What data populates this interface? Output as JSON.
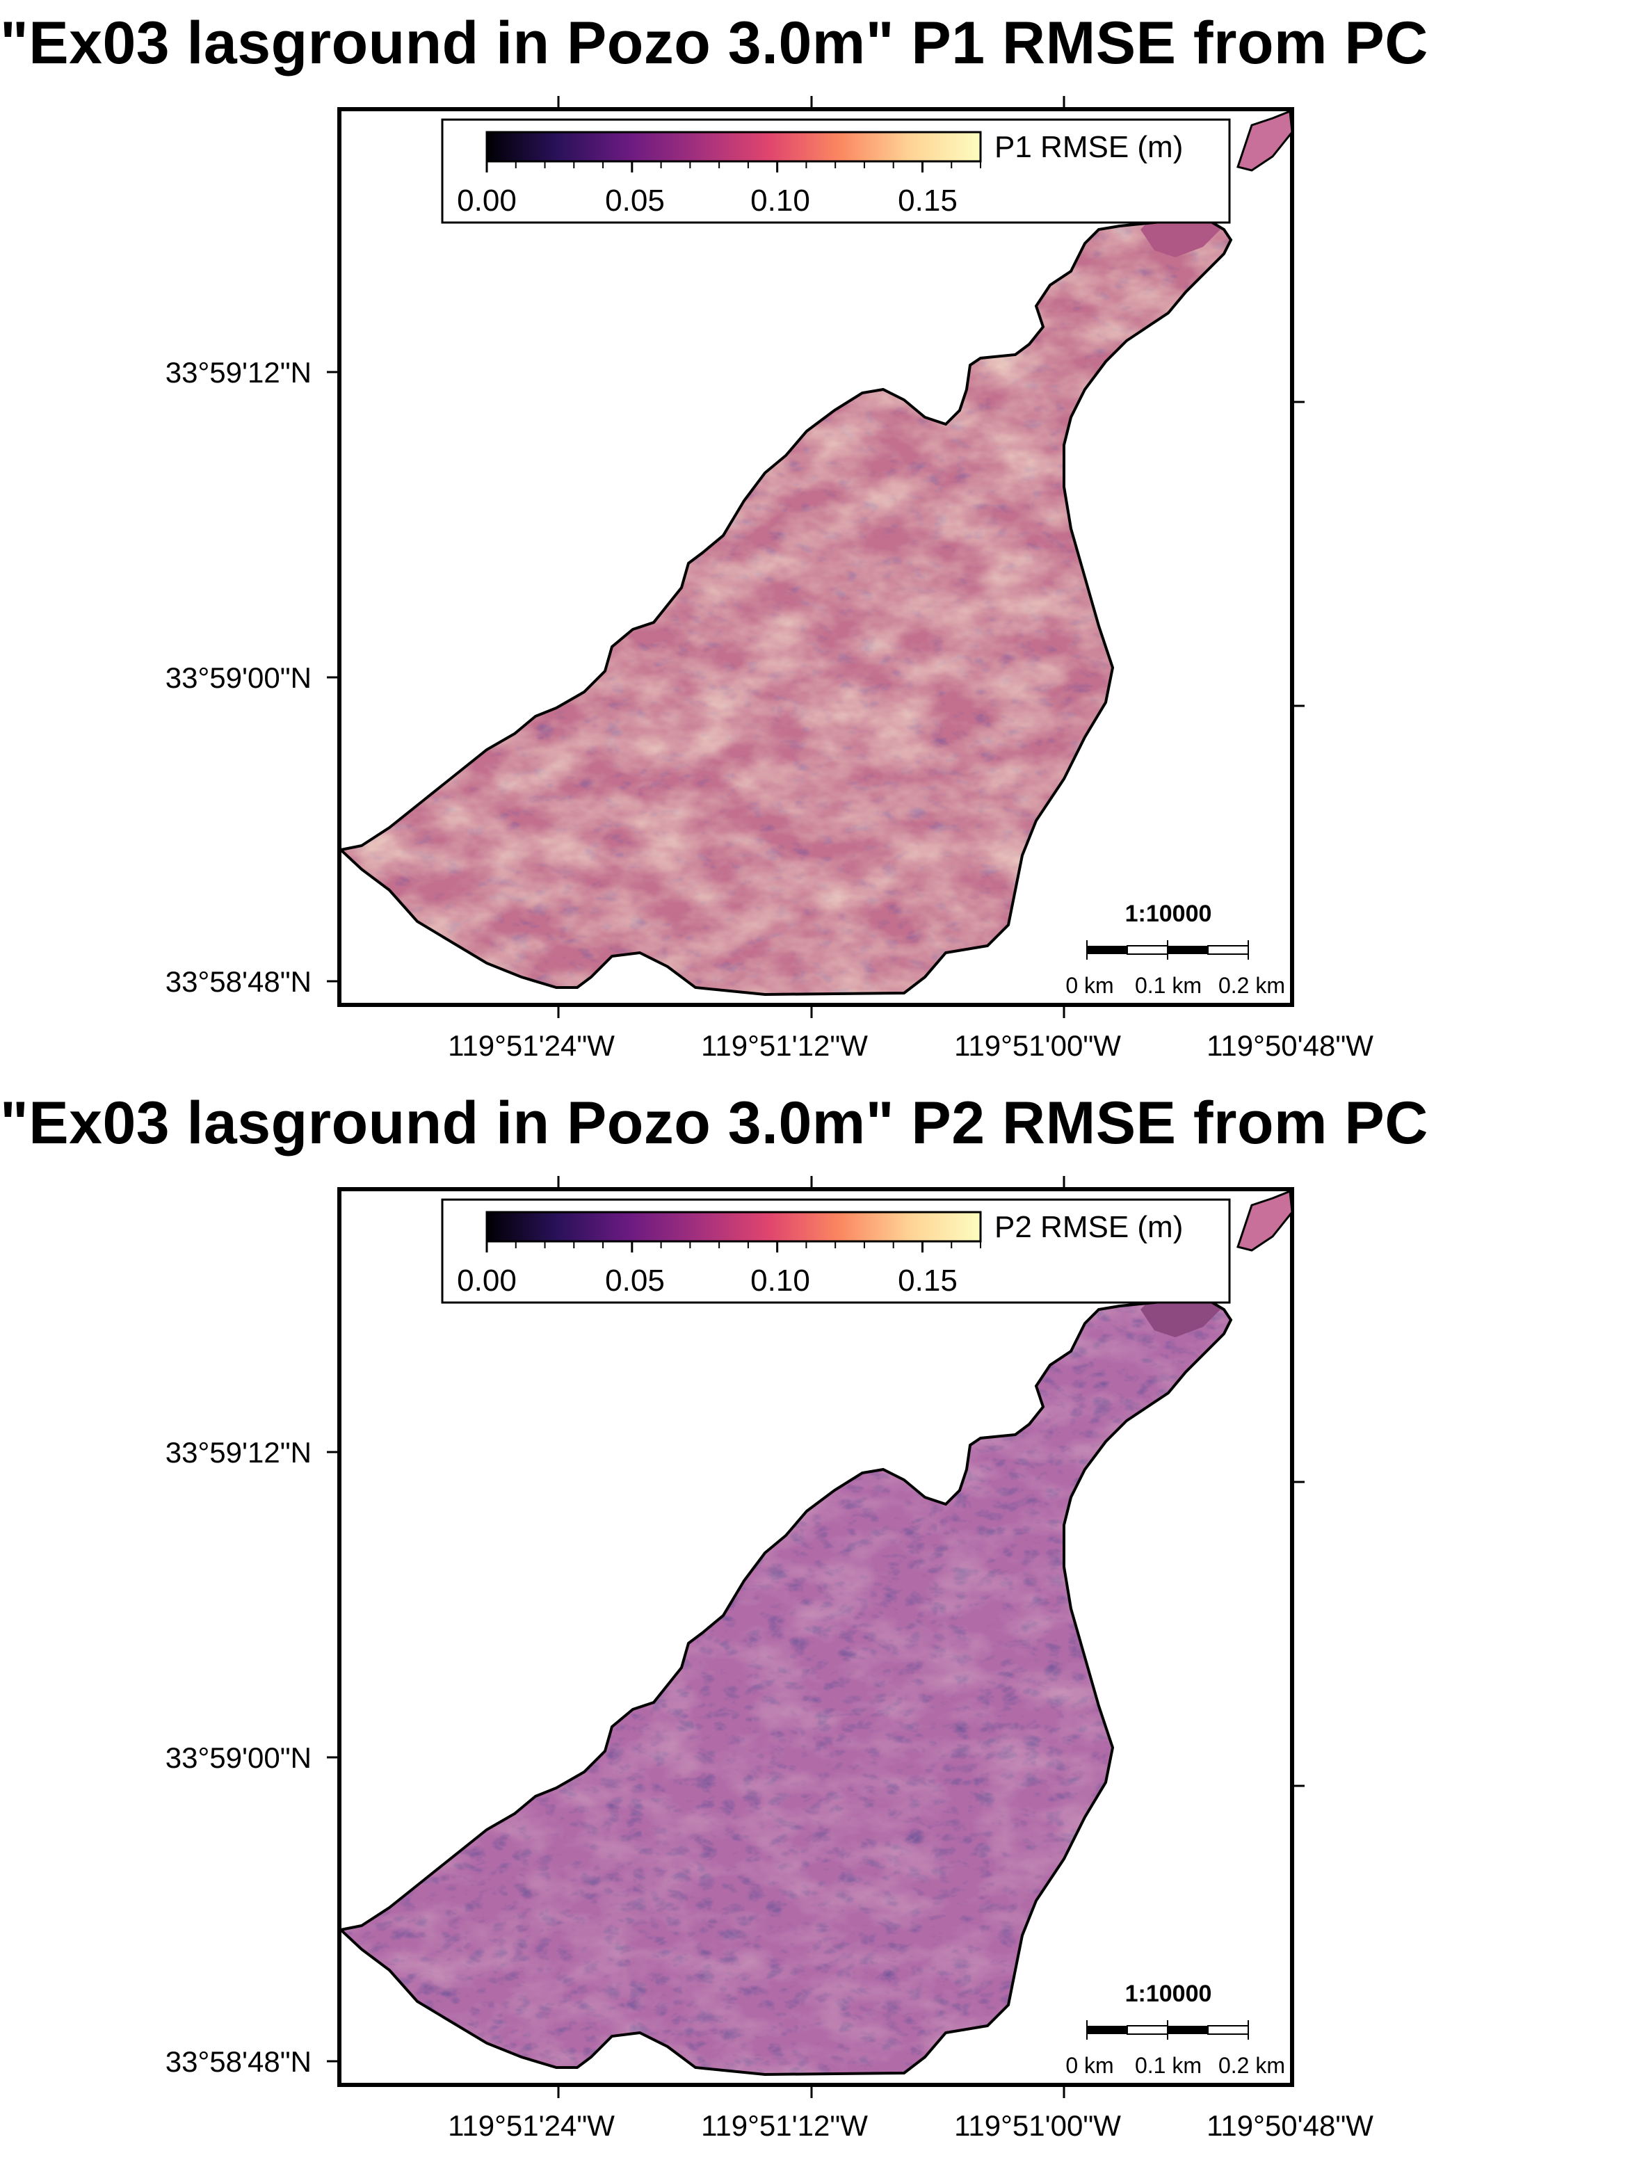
{
  "figure": {
    "panels": [
      {
        "id": "p1",
        "title": "\"Ex03 lasground in Pozo 3.0m\" P1 RMSE from PC",
        "colorbar": {
          "label": "P1 RMSE (m)",
          "ticks": [
            "0.00",
            "0.05",
            "0.10",
            "0.15"
          ],
          "range": [
            0.0,
            0.17
          ],
          "colormap": [
            "#000004",
            "#2a115a",
            "#6a1a80",
            "#a3307e",
            "#e0456e",
            "#fb8761",
            "#fed395",
            "#fcfdbf"
          ]
        },
        "lat_labels": [
          "33°59'12\"N",
          "33°59'00\"N",
          "33°58'48\"N"
        ],
        "lon_labels": [
          "119°51'24\"W",
          "119°51'12\"W",
          "119°51'00\"W",
          "119°50'48\"W"
        ],
        "scale": {
          "ratio": "1:10000",
          "labels": [
            "0 km",
            "0.1 km",
            "0.2 km"
          ]
        },
        "intensity": 1.0
      },
      {
        "id": "p2",
        "title": "\"Ex03 lasground in Pozo 3.0m\" P2 RMSE from PC",
        "colorbar": {
          "label": "P2 RMSE (m)",
          "ticks": [
            "0.00",
            "0.05",
            "0.10",
            "0.15"
          ],
          "range": [
            0.0,
            0.17
          ],
          "colormap": [
            "#000004",
            "#2a115a",
            "#6a1a80",
            "#a3307e",
            "#e0456e",
            "#fb8761",
            "#fed395",
            "#fcfdbf"
          ]
        },
        "lat_labels": [
          "33°59'12\"N",
          "33°59'00\"N",
          "33°58'48\"N"
        ],
        "lon_labels": [
          "119°51'24\"W",
          "119°51'12\"W",
          "119°51'00\"W",
          "119°50'48\"W"
        ],
        "scale": {
          "ratio": "1:10000",
          "labels": [
            "0 km",
            "0.1 km",
            "0.2 km"
          ]
        },
        "intensity": 0.55
      }
    ]
  }
}
